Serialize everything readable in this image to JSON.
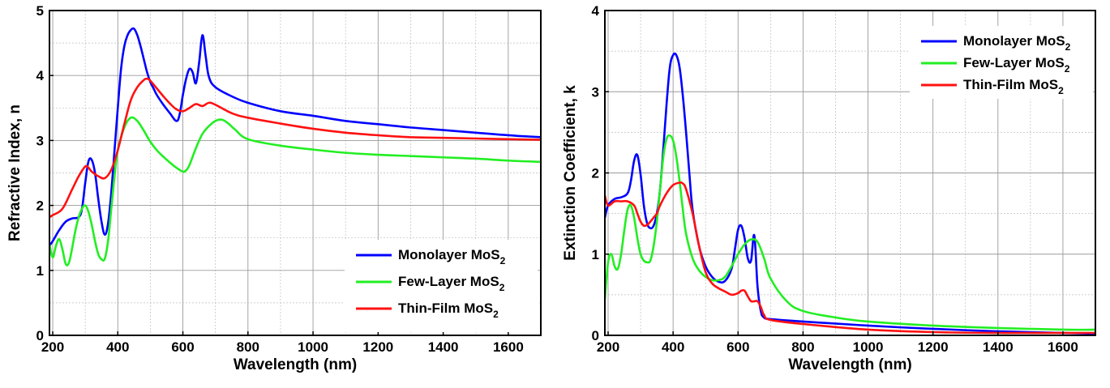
{
  "chart_data": [
    {
      "type": "line",
      "xlabel": "Wavelength (nm)",
      "ylabel": "Refractive Index, n",
      "xlim": [
        190,
        1700
      ],
      "ylim": [
        0,
        5
      ],
      "xticks": [
        200,
        400,
        600,
        800,
        1000,
        1200,
        1400,
        1600
      ],
      "yticks": [
        0,
        1,
        2,
        3,
        4,
        5
      ],
      "grid": true,
      "legend_position": "bottom-right",
      "series": [
        {
          "name": "Monolayer MoS",
          "name_sub": "2",
          "color": "#0000ff",
          "x": [
            190,
            200,
            220,
            240,
            260,
            280,
            290,
            300,
            310,
            320,
            330,
            340,
            350,
            360,
            370,
            380,
            390,
            400,
            410,
            420,
            430,
            440,
            450,
            460,
            470,
            480,
            490,
            500,
            510,
            520,
            540,
            560,
            580,
            590,
            600,
            610,
            620,
            630,
            640,
            650,
            660,
            670,
            680,
            700,
            750,
            800,
            900,
            1000,
            1100,
            1200,
            1300,
            1400,
            1500,
            1600,
            1700
          ],
          "y": [
            1.38,
            1.45,
            1.62,
            1.75,
            1.8,
            1.82,
            1.95,
            2.35,
            2.68,
            2.7,
            2.5,
            2.1,
            1.75,
            1.55,
            1.72,
            2.2,
            2.85,
            3.5,
            4.1,
            4.45,
            4.62,
            4.7,
            4.72,
            4.62,
            4.45,
            4.25,
            4.05,
            3.9,
            3.8,
            3.7,
            3.55,
            3.42,
            3.3,
            3.4,
            3.7,
            3.95,
            4.1,
            4.05,
            3.88,
            4.2,
            4.62,
            4.3,
            3.98,
            3.82,
            3.68,
            3.58,
            3.45,
            3.38,
            3.3,
            3.25,
            3.2,
            3.16,
            3.12,
            3.08,
            3.05
          ]
        },
        {
          "name": "Few-Layer MoS",
          "name_sub": "2",
          "color": "#22ee22",
          "x": [
            190,
            200,
            210,
            220,
            230,
            240,
            250,
            260,
            270,
            280,
            290,
            300,
            310,
            320,
            330,
            340,
            350,
            360,
            370,
            380,
            390,
            400,
            420,
            440,
            460,
            480,
            500,
            520,
            540,
            560,
            580,
            600,
            610,
            620,
            640,
            660,
            680,
            700,
            720,
            740,
            760,
            800,
            900,
            1000,
            1100,
            1200,
            1300,
            1400,
            1500,
            1600,
            1700
          ],
          "y": [
            1.4,
            1.2,
            1.38,
            1.48,
            1.32,
            1.1,
            1.12,
            1.35,
            1.62,
            1.82,
            1.95,
            2.0,
            1.9,
            1.7,
            1.45,
            1.25,
            1.17,
            1.18,
            1.45,
            1.95,
            2.45,
            2.85,
            3.2,
            3.35,
            3.3,
            3.15,
            2.98,
            2.85,
            2.75,
            2.66,
            2.58,
            2.52,
            2.54,
            2.62,
            2.88,
            3.1,
            3.22,
            3.3,
            3.32,
            3.26,
            3.17,
            3.02,
            2.92,
            2.86,
            2.81,
            2.78,
            2.76,
            2.74,
            2.72,
            2.69,
            2.67
          ]
        },
        {
          "name": "Thin-Film MoS",
          "name_sub": "2",
          "color": "#ff1111",
          "x": [
            190,
            200,
            230,
            260,
            280,
            300,
            310,
            320,
            340,
            360,
            380,
            400,
            420,
            440,
            460,
            480,
            490,
            500,
            520,
            540,
            560,
            580,
            600,
            620,
            640,
            660,
            680,
            700,
            750,
            800,
            900,
            1000,
            1100,
            1200,
            1300,
            1400,
            1500,
            1600,
            1700
          ],
          "y": [
            1.82,
            1.85,
            1.95,
            2.25,
            2.45,
            2.6,
            2.58,
            2.52,
            2.45,
            2.42,
            2.55,
            2.85,
            3.25,
            3.62,
            3.82,
            3.93,
            3.95,
            3.92,
            3.8,
            3.68,
            3.57,
            3.48,
            3.45,
            3.5,
            3.56,
            3.53,
            3.58,
            3.55,
            3.42,
            3.35,
            3.26,
            3.18,
            3.12,
            3.08,
            3.05,
            3.04,
            3.03,
            3.02,
            3.01
          ]
        }
      ]
    },
    {
      "type": "line",
      "xlabel": "Wavelength (nm)",
      "ylabel": "Extinction Coefficient, k",
      "xlim": [
        190,
        1700
      ],
      "ylim": [
        0,
        4
      ],
      "xticks": [
        200,
        400,
        600,
        800,
        1000,
        1200,
        1400,
        1600
      ],
      "yticks": [
        0,
        1,
        2,
        3,
        4
      ],
      "grid": true,
      "legend_position": "top-right",
      "series": [
        {
          "name": "Monolayer MoS",
          "name_sub": "2",
          "color": "#0000ff",
          "x": [
            190,
            200,
            220,
            240,
            260,
            270,
            280,
            290,
            300,
            310,
            320,
            330,
            340,
            350,
            360,
            370,
            380,
            390,
            400,
            410,
            420,
            430,
            440,
            450,
            460,
            480,
            500,
            520,
            540,
            560,
            580,
            590,
            600,
            610,
            620,
            630,
            640,
            650,
            660,
            670,
            680,
            700,
            800,
            1000,
            1200,
            1400,
            1600,
            1700
          ],
          "y": [
            1.45,
            1.6,
            1.68,
            1.7,
            1.75,
            1.9,
            2.15,
            2.22,
            1.98,
            1.6,
            1.38,
            1.32,
            1.35,
            1.5,
            1.8,
            2.3,
            2.85,
            3.3,
            3.45,
            3.45,
            3.3,
            2.95,
            2.5,
            2.0,
            1.55,
            1.1,
            0.85,
            0.72,
            0.66,
            0.67,
            0.82,
            1.05,
            1.3,
            1.35,
            1.2,
            0.95,
            0.92,
            1.23,
            0.6,
            0.3,
            0.22,
            0.2,
            0.17,
            0.12,
            0.08,
            0.05,
            0.03,
            0.02
          ]
        },
        {
          "name": "Few-Layer MoS",
          "name_sub": "2",
          "color": "#22ee22",
          "x": [
            190,
            200,
            210,
            220,
            230,
            240,
            250,
            260,
            270,
            280,
            290,
            300,
            310,
            320,
            330,
            340,
            350,
            360,
            370,
            380,
            390,
            400,
            410,
            420,
            430,
            440,
            460,
            480,
            500,
            520,
            540,
            560,
            580,
            600,
            620,
            640,
            660,
            680,
            700,
            750,
            800,
            900,
            1000,
            1200,
            1400,
            1600,
            1700
          ],
          "y": [
            0.45,
            0.9,
            1.0,
            0.85,
            0.82,
            1.0,
            1.3,
            1.55,
            1.6,
            1.45,
            1.2,
            1.0,
            0.92,
            0.9,
            0.92,
            1.1,
            1.4,
            1.8,
            2.2,
            2.42,
            2.46,
            2.4,
            2.2,
            1.9,
            1.55,
            1.25,
            0.95,
            0.8,
            0.72,
            0.68,
            0.68,
            0.72,
            0.85,
            1.0,
            1.12,
            1.18,
            1.15,
            0.95,
            0.7,
            0.42,
            0.3,
            0.22,
            0.17,
            0.12,
            0.09,
            0.07,
            0.07
          ]
        },
        {
          "name": "Thin-Film MoS",
          "name_sub": "2",
          "color": "#ff1111",
          "x": [
            190,
            200,
            220,
            240,
            260,
            280,
            290,
            300,
            310,
            320,
            330,
            340,
            350,
            360,
            380,
            400,
            420,
            430,
            440,
            460,
            480,
            500,
            520,
            540,
            560,
            580,
            600,
            610,
            620,
            630,
            640,
            650,
            660,
            670,
            680,
            700,
            800,
            1000,
            1200,
            1400,
            1600,
            1700
          ],
          "y": [
            1.72,
            1.6,
            1.65,
            1.65,
            1.65,
            1.6,
            1.5,
            1.4,
            1.35,
            1.36,
            1.4,
            1.45,
            1.5,
            1.6,
            1.75,
            1.85,
            1.88,
            1.87,
            1.8,
            1.5,
            1.1,
            0.78,
            0.64,
            0.58,
            0.54,
            0.5,
            0.52,
            0.55,
            0.55,
            0.48,
            0.42,
            0.42,
            0.42,
            0.35,
            0.25,
            0.19,
            0.14,
            0.07,
            0.04,
            0.03,
            0.03,
            0.03
          ]
        }
      ]
    }
  ]
}
